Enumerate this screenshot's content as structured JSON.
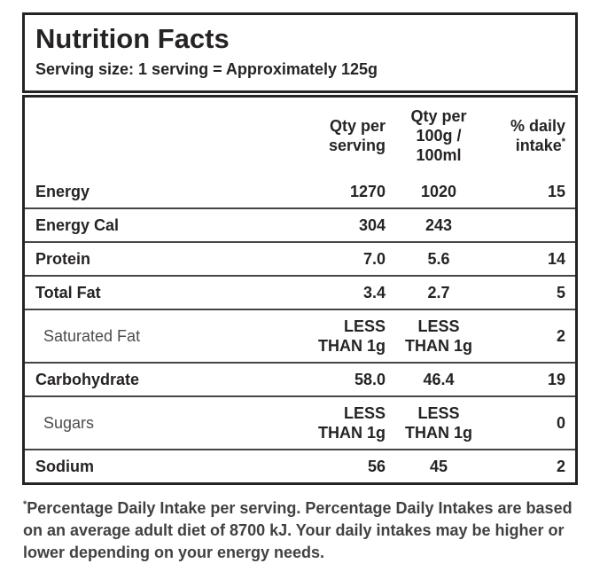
{
  "colors": {
    "border": "#262323",
    "text": "#262323",
    "sub_label": "#4d4d4d",
    "divider": "#454545",
    "footnote_text": "#414141"
  },
  "label": {
    "title": "Nutrition Facts",
    "serving_line": "Serving size: 1 serving = Approximately 125g"
  },
  "table": {
    "columns": [
      "",
      "Qty per serving",
      "Qty per 100g / 100ml",
      "% daily intake"
    ],
    "header_asterisk": "*",
    "rows": [
      {
        "name": "Energy",
        "per_serving": "1270",
        "per_100g": "1020",
        "daily_intake": "15"
      },
      {
        "name": "Energy Cal",
        "per_serving": "304",
        "per_100g": "243",
        "daily_intake": ""
      },
      {
        "name": "Protein",
        "per_serving": "7.0",
        "per_100g": "5.6",
        "daily_intake": "14"
      },
      {
        "name": "Total Fat",
        "per_serving": "3.4",
        "per_100g": "2.7",
        "daily_intake": "5"
      },
      {
        "name": "Saturated Fat",
        "per_serving": "LESS THAN 1g",
        "per_100g": "LESS THAN 1g",
        "daily_intake": "2"
      },
      {
        "name": "Carbohydrate",
        "per_serving": "58.0",
        "per_100g": "46.4",
        "daily_intake": "19"
      },
      {
        "name": "Sugars",
        "per_serving": "LESS THAN 1g",
        "per_100g": "LESS THAN 1g",
        "daily_intake": "0"
      },
      {
        "name": "Sodium",
        "per_serving": "56",
        "per_100g": "45",
        "daily_intake": "2"
      }
    ]
  },
  "footnote": {
    "asterisk": "*",
    "text": "Percentage Daily Intake per serving. Percentage Daily Intakes are based on an average adult diet of 8700 kJ. Your daily intakes may be higher or lower depending on your energy needs."
  }
}
